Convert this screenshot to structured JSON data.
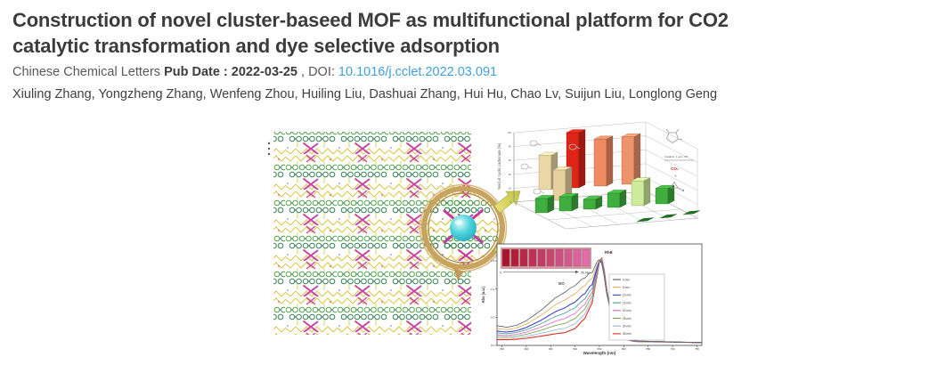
{
  "article": {
    "title_lines": [
      "Construction of novel cluster-baseed MOF as multifunctional platform for CO2",
      "catalytic transformation and dye selective adsorption"
    ],
    "journal": "Chinese Chemical Letters",
    "pub_date": "Pub Date : 2022-03-25",
    "separator": " , ",
    "doi_label": "DOI: ",
    "doi": "10.1016/j.cclet.2022.03.091",
    "authors": "Xiuling Zhang, Yongzheng Zhang, Wenfeng Zhou, Huiling Liu, Dashuai Zhang, Hui Hu, Chao Lv, Suijun Liu, Longlong Geng"
  },
  "figure": {
    "bar_chart": {
      "type": "bar3d",
      "ylabel": "Yield of cyclic carbonate (%)",
      "yticks": [
        0,
        20,
        40,
        60,
        80,
        100
      ],
      "back_row": {
        "colors": [
          "#ead7a6",
          "#df2418",
          "#ef8a62",
          "#ef936c"
        ],
        "values": [
          62,
          100,
          85,
          86
        ]
      },
      "mid_bar": {
        "color": "#e8d09e",
        "value": 55
      },
      "front_row": {
        "colors": [
          "#3fae3f",
          "#3fae3f",
          "#3fae3f",
          "#3fae3f",
          "#cdeb9a",
          "#3fae3f"
        ],
        "values": [
          26,
          26,
          18,
          26,
          45,
          28
        ]
      },
      "floor_tiles": [
        2,
        2,
        2
      ],
      "reaction": {
        "conditions": "Catalyst, 1 atm, RT",
        "co2": "CO₂",
        "plus": "+"
      }
    },
    "spectrum": {
      "type": "line",
      "xlabel": "Wavelength (nm)",
      "ylabel": "Abs (a.u.)",
      "xlim": [
        340,
        760
      ],
      "ylim": [
        0,
        1.8
      ],
      "xticks": [
        350,
        400,
        450,
        500,
        550,
        600,
        650,
        700,
        750
      ],
      "yticks": [
        0.0,
        0.5,
        1.0,
        1.5
      ],
      "mo_label": "MO",
      "rhb_label": "RhB",
      "rhb_peak_nm": 554,
      "mo_band_nm": 464,
      "inset": {
        "start_label": "0",
        "end_label": "35 min"
      },
      "series": [
        {
          "name": "0 min",
          "color": "#5a5a5a",
          "mo_abs": 1.0
        },
        {
          "name": "5 min",
          "color": "#e2a84e",
          "mo_abs": 0.84
        },
        {
          "name": "10 min",
          "color": "#4343cf",
          "mo_abs": 0.68
        },
        {
          "name": "15 min",
          "color": "#3f9e8f",
          "mo_abs": 0.57
        },
        {
          "name": "20 min",
          "color": "#e45ec8",
          "mo_abs": 0.46
        },
        {
          "name": "25 min",
          "color": "#6aa23c",
          "mo_abs": 0.36
        },
        {
          "name": "30 min",
          "color": "#93b4d6",
          "mo_abs": 0.26
        },
        {
          "name": "35 min",
          "color": "#e03020",
          "mo_abs": 0.17
        }
      ]
    }
  }
}
